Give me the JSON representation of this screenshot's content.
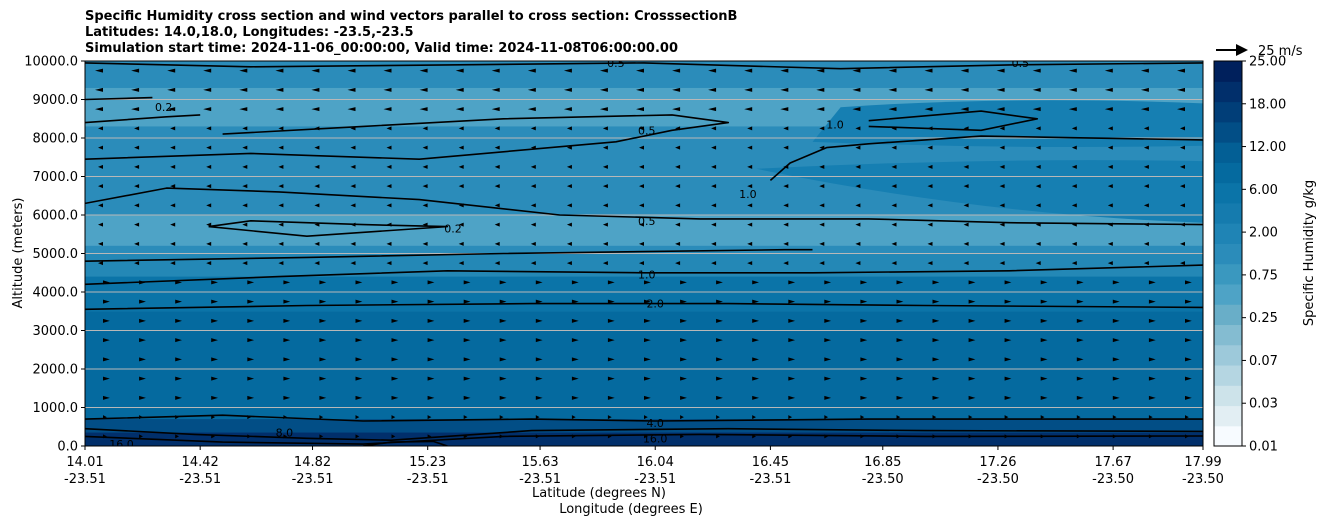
{
  "title": {
    "line1": "Specific Humidity cross section and wind vectors parallel to cross section: CrosssectionB",
    "line2": "Latitudes: 14.0,18.0, Longitudes: -23.5,-23.5",
    "line3": "Simulation start time: 2024-11-06_00:00:00, Valid time: 2024-11-08T06:00:00.00"
  },
  "chart_data": {
    "type": "heatmap",
    "title": "Specific Humidity cross section and wind vectors parallel to cross section: CrosssectionB",
    "xlabel": "Latitude (degrees N)",
    "xlabel2": "Longitude (degrees E)",
    "ylabel": "Altitude (meters)",
    "ylim": [
      0,
      10000
    ],
    "xlim": [
      14.01,
      17.99
    ],
    "x_ticks": [
      {
        "lat": "14.01",
        "lon": "-23.51"
      },
      {
        "lat": "14.42",
        "lon": "-23.51"
      },
      {
        "lat": "14.82",
        "lon": "-23.51"
      },
      {
        "lat": "15.23",
        "lon": "-23.51"
      },
      {
        "lat": "15.63",
        "lon": "-23.51"
      },
      {
        "lat": "16.04",
        "lon": "-23.51"
      },
      {
        "lat": "16.45",
        "lon": "-23.51"
      },
      {
        "lat": "16.85",
        "lon": "-23.50"
      },
      {
        "lat": "17.26",
        "lon": "-23.50"
      },
      {
        "lat": "17.67",
        "lon": "-23.50"
      },
      {
        "lat": "17.99",
        "lon": "-23.50"
      }
    ],
    "y_ticks": [
      "0.0",
      "1000.0",
      "2000.0",
      "3000.0",
      "4000.0",
      "5000.0",
      "6000.0",
      "7000.0",
      "8000.0",
      "9000.0",
      "10000.0"
    ],
    "grid": true,
    "colorbar": {
      "label": "Specific Humidity g/kg",
      "ticks": [
        "0.01",
        "0.03",
        "0.07",
        "0.25",
        "0.75",
        "2.00",
        "6.00",
        "12.00",
        "18.00",
        "25.00"
      ],
      "levels": 18
    },
    "wind_reference": {
      "label": "25 m/s",
      "value": 25
    },
    "contour_labels": [
      {
        "text": "0.5",
        "lat": 16.01,
        "alt": 8200
      },
      {
        "text": "0.5",
        "lat": 16.01,
        "alt": 5850
      },
      {
        "text": "1.0",
        "lat": 16.01,
        "alt": 4450
      },
      {
        "text": "2.0",
        "lat": 16.04,
        "alt": 3700
      },
      {
        "text": "4.0",
        "lat": 16.04,
        "alt": 600
      },
      {
        "text": "8.0",
        "lat": 14.72,
        "alt": 350
      },
      {
        "text": "0.2",
        "lat": 14.29,
        "alt": 8800
      },
      {
        "text": "0.2",
        "lat": 15.32,
        "alt": 5650
      },
      {
        "text": "1.0",
        "lat": 16.68,
        "alt": 8350
      },
      {
        "text": "1.0",
        "lat": 16.37,
        "alt": 6550
      },
      {
        "text": "0.5",
        "lat": 15.9,
        "alt": 9950
      },
      {
        "text": "0.5",
        "lat": 17.34,
        "alt": 9950
      },
      {
        "text": "16.0",
        "lat": 14.14,
        "alt": 50
      },
      {
        "text": "16.0",
        "lat": 16.04,
        "alt": 200
      }
    ]
  }
}
